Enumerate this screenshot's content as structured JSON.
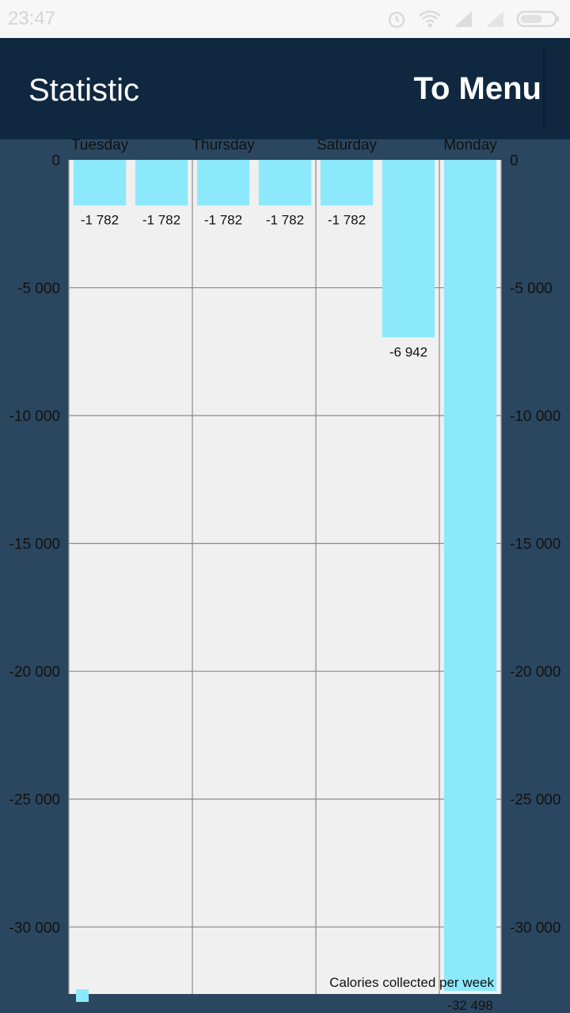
{
  "status_bar": {
    "time": "23:47",
    "icons": [
      "alarm-icon",
      "wifi-icon",
      "signal-icon",
      "signal-icon",
      "battery-icon"
    ]
  },
  "app_bar": {
    "title": "Statistic",
    "menu_label": "To Menu"
  },
  "colors": {
    "status_bar": "#f7f7f7",
    "app_bar": "#0f2840",
    "background": "#2b4760",
    "plot_background": "#f0f0f0",
    "bar": "#8ce9fb",
    "grid": "#8a8a8a"
  },
  "chart_data": {
    "type": "bar",
    "categories": [
      "Tuesday",
      "",
      "Thursday",
      "",
      "Saturday",
      "",
      "Monday"
    ],
    "values": [
      -1782,
      -1782,
      -1782,
      -1782,
      -1782,
      -6942,
      -32498
    ],
    "value_labels": [
      "-1 782",
      "-1 782",
      "-1 782",
      "-1 782",
      "-1 782",
      "-6 942",
      "-32 498"
    ],
    "ylim": [
      -32498,
      0
    ],
    "yticks": [
      0,
      -5000,
      -10000,
      -15000,
      -20000,
      -25000,
      -30000
    ],
    "ytick_labels": [
      "0",
      "-5 000",
      "-10 000",
      "-15 000",
      "-20 000",
      "-25 000",
      "-30 000"
    ],
    "legend": {
      "label": "Calories collected per week",
      "position": "bottom-right"
    },
    "grid": true,
    "xlabel": "",
    "ylabel": ""
  }
}
